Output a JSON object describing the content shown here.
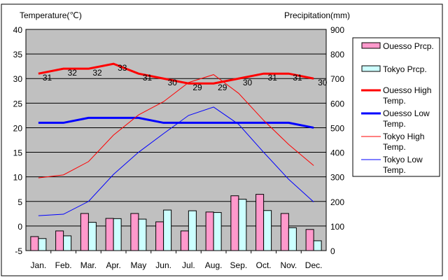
{
  "chart_data": {
    "type": "bar",
    "left_axis_title": "Temperature(℃)",
    "right_axis_title": "Precipitation(mm)",
    "categories": [
      "Jan.",
      "Feb.",
      "Mar.",
      "Apr.",
      "May",
      "Jun.",
      "Jul.",
      "Aug.",
      "Sep.",
      "Oct.",
      "Nov.",
      "Dec."
    ],
    "ylim_left": [
      -5,
      40
    ],
    "yticks_left": [
      "40",
      "35",
      "30",
      "25",
      "20",
      "15",
      "10",
      "5",
      "0",
      "-5"
    ],
    "ylim_right": [
      0,
      900
    ],
    "yticks_right": [
      "900",
      "800",
      "700",
      "600",
      "500",
      "400",
      "300",
      "200",
      "100",
      "0"
    ],
    "grid": true,
    "legend_position": "right",
    "bar_series": [
      {
        "name": "Ouesso Prcp.",
        "color": "#ff99cc",
        "values": [
          57,
          80,
          151,
          131,
          151,
          117,
          80,
          157,
          223,
          229,
          151,
          86
        ]
      },
      {
        "name": "Tokyo Prcp.",
        "color": "#ccffff",
        "values": [
          49,
          60,
          115,
          130,
          128,
          165,
          162,
          155,
          209,
          163,
          93,
          40
        ]
      }
    ],
    "line_series": [
      {
        "name": "Ouesso High Temp.",
        "color": "#ff0000",
        "width": 3,
        "labels": true,
        "values": [
          31,
          32,
          32,
          33,
          31,
          30,
          29,
          29,
          30,
          31,
          31,
          30
        ]
      },
      {
        "name": "Ouesso Low Temp.",
        "color": "#0000ff",
        "width": 3,
        "labels": false,
        "values": [
          21,
          21,
          22,
          22,
          22,
          21,
          21,
          21,
          21,
          21,
          21,
          20
        ]
      },
      {
        "name": "Tokyo High Temp.",
        "color": "#ff0000",
        "width": 1,
        "labels": false,
        "values": [
          9.8,
          10.4,
          13.1,
          18.5,
          22.6,
          25.3,
          29.2,
          30.8,
          27,
          21.5,
          16.6,
          12.3
        ]
      },
      {
        "name": "Tokyo Low Temp.",
        "color": "#0000ff",
        "width": 1,
        "labels": false,
        "values": [
          2.1,
          2.4,
          5,
          10.5,
          15,
          18.8,
          22.5,
          24.2,
          20.7,
          15,
          9.5,
          4.9
        ]
      }
    ]
  }
}
